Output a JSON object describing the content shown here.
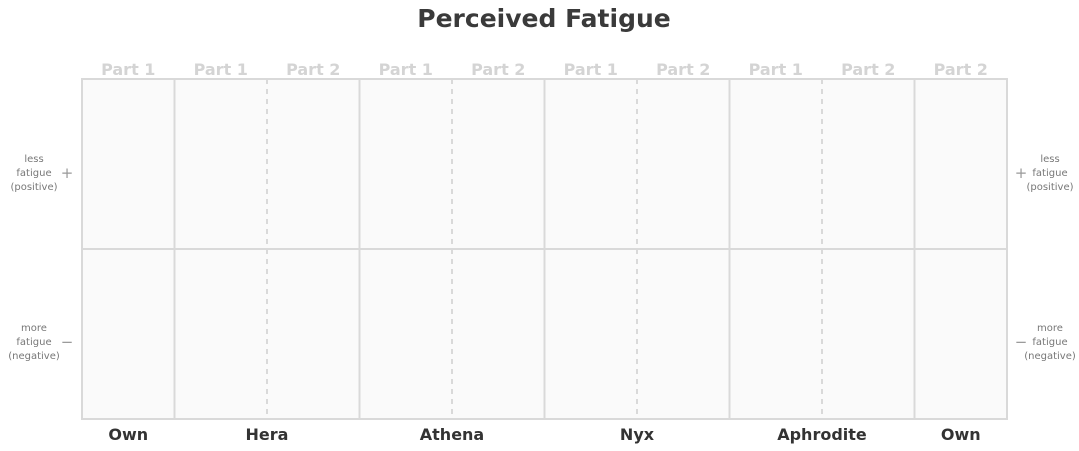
{
  "chart_data": {
    "type": "table",
    "title": "Perceived Fatigue",
    "groups": [
      {
        "name": "Own",
        "parts": [
          "Part 1"
        ]
      },
      {
        "name": "Hera",
        "parts": [
          "Part 1",
          "Part 2"
        ]
      },
      {
        "name": "Athena",
        "parts": [
          "Part 1",
          "Part 2"
        ]
      },
      {
        "name": "Nyx",
        "parts": [
          "Part 1",
          "Part 2"
        ]
      },
      {
        "name": "Aphrodite",
        "parts": [
          "Part 1",
          "Part 2"
        ]
      },
      {
        "name": "Own",
        "parts": [
          "Part 2"
        ]
      }
    ],
    "y_axis": {
      "positive": {
        "sign": "+",
        "lines": [
          "less",
          "fatigue",
          "(positive)"
        ]
      },
      "negative": {
        "sign": "−",
        "lines": [
          "more",
          "fatigue",
          "(negative)"
        ]
      }
    },
    "series": [],
    "colors": {
      "background": "#fafafa",
      "grid": "#d9d9d9",
      "part_label": "#d4d4d4",
      "group_label": "#333333"
    }
  }
}
